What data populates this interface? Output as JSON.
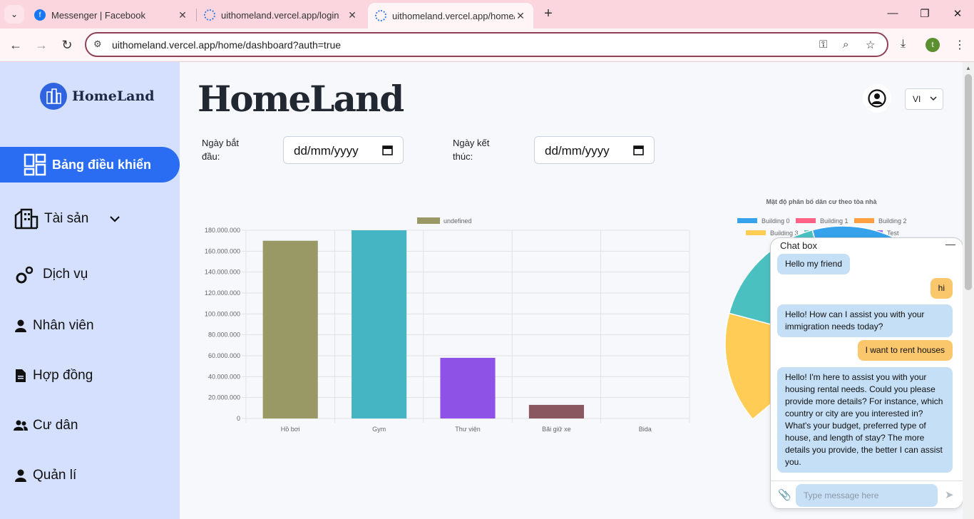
{
  "browser": {
    "tabs": [
      {
        "title": "Messenger | Facebook",
        "active": false
      },
      {
        "title": "uithomeland.vercel.app/login",
        "active": false
      },
      {
        "title": "uithomeland.vercel.app/home/d",
        "active": true
      }
    ],
    "url": "uithomeland.vercel.app/home/dashboard?auth=true",
    "profile_initial": "t"
  },
  "sidebar": {
    "logo_text": "HomeLand",
    "items": [
      {
        "label": "Bảng điều khiển",
        "icon": "dashboard-icon",
        "active": true
      },
      {
        "label": "Tài sản",
        "icon": "building-icon",
        "has_submenu": true
      },
      {
        "label": "Dịch vụ",
        "icon": "gears-icon"
      },
      {
        "label": "Nhân viên",
        "icon": "person-icon"
      },
      {
        "label": "Hợp đồng",
        "icon": "document-icon"
      },
      {
        "label": "Cư dân",
        "icon": "users-icon"
      },
      {
        "label": "Quản lí",
        "icon": "person-icon"
      }
    ]
  },
  "header": {
    "brand": "HomeLand",
    "language": "VI"
  },
  "filters": {
    "start_label": "Ngày bắt đầu:",
    "start_placeholder": "dd/mm/yyyy",
    "end_label": "Ngày kết thúc:",
    "end_placeholder": "dd/mm/yyyy"
  },
  "chart_data": [
    {
      "type": "bar",
      "categories": [
        "Hồ bơi",
        "Gym",
        "Thư viện",
        "Bãi giữ xe",
        "Bida"
      ],
      "series": [
        {
          "name": "undefined",
          "values": [
            170000000,
            180000000,
            58000000,
            13000000,
            0
          ]
        }
      ],
      "colors": [
        "#999966",
        "#45b5c4",
        "#8e52e6",
        "#8a5660",
        "#cccccc"
      ],
      "ylim": [
        0,
        180000000
      ],
      "yticks": [
        "0",
        "20.000.000",
        "40.000.000",
        "60.000.000",
        "80.000.000",
        "100.000.000",
        "120.000.000",
        "140.000.000",
        "160.000.000",
        "180.000.000"
      ],
      "grid": true,
      "legend": "top"
    },
    {
      "type": "pie",
      "title": "Mật độ phân bố dân cư theo tòa nhà",
      "labels": [
        "Building 0",
        "Building 1",
        "Building 2",
        "Building 3",
        "Building 4",
        "Test"
      ],
      "colors": [
        "#36a2eb",
        "#ff6384",
        "#ff9f40",
        "#ffcd56",
        "#4bc0c0",
        "#9966ff"
      ],
      "legend": "top"
    }
  ],
  "chat": {
    "title": "Chat box",
    "messages": [
      {
        "from": "bot",
        "text": "Hello my friend"
      },
      {
        "from": "user",
        "text": "hi"
      },
      {
        "from": "bot",
        "text": "Hello! How can I assist you with your immigration needs today?"
      },
      {
        "from": "user",
        "text": "I want to rent houses"
      },
      {
        "from": "bot",
        "text": "Hello! I'm here to assist you with your housing rental needs. Could you please provide more details? For instance, which country or city are you interested in? What's your budget, preferred type of house, and length of stay? The more details you provide, the better I can assist you."
      }
    ],
    "input_placeholder": "Type message here"
  }
}
